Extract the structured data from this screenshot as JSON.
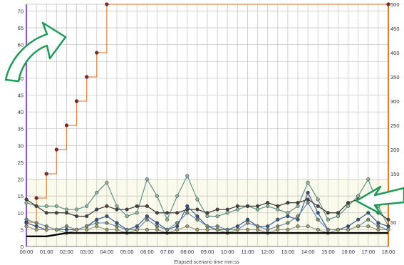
{
  "chart_data": {
    "type": "line",
    "xlabel": "Elapsed scenario time mm:ss",
    "ylabel": "",
    "x": [
      "00:00",
      "01:00",
      "02:00",
      "03:00",
      "04:00",
      "05:00",
      "06:00",
      "07:00",
      "08:00",
      "09:00",
      "10:00",
      "11:00",
      "12:00",
      "13:00",
      "14:00",
      "15:00",
      "16:00",
      "17:00",
      "18:00"
    ],
    "xlim": [
      0,
      18
    ],
    "ylim_left": [
      0,
      72
    ],
    "left_ticks": [
      0,
      5,
      10,
      15,
      20,
      25,
      30,
      35,
      40,
      45,
      50,
      55,
      60,
      65,
      70
    ],
    "ylim_right": [
      0,
      500
    ],
    "right_ticks": [
      50,
      100,
      150,
      200,
      250,
      300,
      350,
      400,
      450,
      500
    ],
    "grid": true,
    "series_left": [
      {
        "color": "#5d8f88",
        "marker": "#8fb5a0",
        "points": [
          [
            0,
            13
          ],
          [
            0.5,
            12
          ],
          [
            1,
            12
          ],
          [
            1.5,
            12
          ],
          [
            2,
            11
          ],
          [
            2.5,
            11
          ],
          [
            3,
            12
          ],
          [
            3.5,
            16
          ],
          [
            4,
            19
          ],
          [
            4.5,
            12
          ],
          [
            5,
            9
          ],
          [
            5.5,
            10
          ],
          [
            6,
            20
          ],
          [
            6.5,
            15
          ],
          [
            7,
            8
          ],
          [
            7.5,
            15
          ],
          [
            8,
            21
          ],
          [
            8.5,
            14
          ],
          [
            9,
            9
          ],
          [
            9.5,
            9
          ],
          [
            10,
            10
          ],
          [
            10.5,
            11
          ],
          [
            11,
            12
          ],
          [
            11.5,
            11
          ],
          [
            12,
            12
          ],
          [
            12.5,
            11
          ],
          [
            13,
            10
          ],
          [
            13.5,
            12
          ],
          [
            14,
            19
          ],
          [
            14.5,
            14
          ],
          [
            15,
            8
          ],
          [
            15.5,
            9
          ],
          [
            16,
            12
          ],
          [
            16.5,
            15
          ],
          [
            17,
            20
          ],
          [
            17.5,
            12
          ],
          [
            18,
            6
          ]
        ]
      },
      {
        "color": "#333333",
        "marker": "#444444",
        "points": [
          [
            0,
            14
          ],
          [
            0.5,
            12
          ],
          [
            1,
            10
          ],
          [
            1.5,
            10
          ],
          [
            2,
            10
          ],
          [
            2.5,
            9
          ],
          [
            3,
            9
          ],
          [
            3.5,
            11
          ],
          [
            4,
            12
          ],
          [
            4.5,
            11
          ],
          [
            5,
            11
          ],
          [
            5.5,
            12
          ],
          [
            6,
            12
          ],
          [
            6.5,
            10
          ],
          [
            7,
            10
          ],
          [
            7.5,
            10
          ],
          [
            8,
            11
          ],
          [
            8.5,
            11
          ],
          [
            9,
            10
          ],
          [
            9.5,
            11
          ],
          [
            10,
            11
          ],
          [
            10.5,
            12
          ],
          [
            11,
            12
          ],
          [
            11.5,
            12
          ],
          [
            12,
            13
          ],
          [
            12.5,
            12
          ],
          [
            13,
            13
          ],
          [
            13.5,
            13
          ],
          [
            14,
            14
          ],
          [
            14.5,
            12
          ],
          [
            15,
            10
          ],
          [
            15.5,
            10
          ],
          [
            16,
            13
          ],
          [
            16.5,
            14
          ],
          [
            17,
            12
          ],
          [
            17.5,
            10
          ],
          [
            18,
            8
          ]
        ]
      },
      {
        "color": "#3a5a90",
        "marker": "#34548a",
        "points": [
          [
            0,
            7
          ],
          [
            0.5,
            6
          ],
          [
            1,
            5
          ],
          [
            1.5,
            5
          ],
          [
            2,
            5
          ],
          [
            2.5,
            5
          ],
          [
            3,
            6
          ],
          [
            3.5,
            8
          ],
          [
            4,
            9
          ],
          [
            4.5,
            7
          ],
          [
            5,
            5
          ],
          [
            5.5,
            6
          ],
          [
            6,
            9
          ],
          [
            6.5,
            7
          ],
          [
            7,
            5
          ],
          [
            7.5,
            6
          ],
          [
            8,
            12
          ],
          [
            8.5,
            9
          ],
          [
            9,
            6
          ],
          [
            9.5,
            5
          ],
          [
            10,
            5
          ],
          [
            10.5,
            6
          ],
          [
            11,
            8
          ],
          [
            11.5,
            6
          ],
          [
            12,
            6
          ],
          [
            12.5,
            8
          ],
          [
            13,
            9
          ],
          [
            13.5,
            8
          ],
          [
            14,
            16
          ],
          [
            14.5,
            10
          ],
          [
            15,
            5
          ],
          [
            15.5,
            5
          ],
          [
            16,
            6
          ],
          [
            16.5,
            8
          ],
          [
            17,
            10
          ],
          [
            17.5,
            7
          ],
          [
            18,
            6
          ]
        ]
      },
      {
        "color": "#6a8ab8",
        "marker": "#7a8a70",
        "points": [
          [
            0,
            8
          ],
          [
            0.5,
            7
          ],
          [
            1,
            6
          ],
          [
            1.5,
            5
          ],
          [
            2,
            6
          ],
          [
            2.5,
            5
          ],
          [
            3,
            6
          ],
          [
            3.5,
            7
          ],
          [
            4,
            7
          ],
          [
            4.5,
            6
          ],
          [
            5,
            5
          ],
          [
            5.5,
            5
          ],
          [
            6,
            8
          ],
          [
            6.5,
            6
          ],
          [
            7,
            5
          ],
          [
            7.5,
            7
          ],
          [
            8,
            10
          ],
          [
            8.5,
            8
          ],
          [
            9,
            6
          ],
          [
            9.5,
            6
          ],
          [
            10,
            5
          ],
          [
            10.5,
            5
          ],
          [
            11,
            7
          ],
          [
            11.5,
            6
          ],
          [
            12,
            5
          ],
          [
            12.5,
            6
          ],
          [
            13,
            7
          ],
          [
            13.5,
            9
          ],
          [
            14,
            13
          ],
          [
            14.5,
            8
          ],
          [
            15,
            5
          ],
          [
            15.5,
            5
          ],
          [
            16,
            5
          ],
          [
            16.5,
            6
          ],
          [
            17,
            8
          ],
          [
            17.5,
            6
          ],
          [
            18,
            5
          ]
        ]
      },
      {
        "color": "#999999",
        "marker": "#a0a070",
        "points": [
          [
            0,
            6
          ],
          [
            0.5,
            5
          ],
          [
            1,
            5
          ],
          [
            1.5,
            5
          ],
          [
            2,
            4
          ],
          [
            2.5,
            5
          ],
          [
            3,
            5
          ],
          [
            3.5,
            6
          ],
          [
            4,
            5
          ],
          [
            4.5,
            5
          ],
          [
            5,
            4
          ],
          [
            5.5,
            5
          ],
          [
            6,
            5
          ],
          [
            6.5,
            5
          ],
          [
            7,
            4
          ],
          [
            7.5,
            5
          ],
          [
            8,
            6
          ],
          [
            8.5,
            5
          ],
          [
            9,
            5
          ],
          [
            9.5,
            5
          ],
          [
            10,
            4
          ],
          [
            10.5,
            5
          ],
          [
            11,
            5
          ],
          [
            11.5,
            5
          ],
          [
            12,
            4
          ],
          [
            12.5,
            5
          ],
          [
            13,
            5
          ],
          [
            13.5,
            6
          ],
          [
            14,
            6
          ],
          [
            14.5,
            5
          ],
          [
            15,
            4
          ],
          [
            15.5,
            5
          ],
          [
            16,
            5
          ],
          [
            16.5,
            6
          ],
          [
            17,
            6
          ],
          [
            17.5,
            5
          ],
          [
            18,
            5
          ]
        ]
      },
      {
        "color": "#000000",
        "marker": "#000000",
        "points": [
          [
            0,
            3
          ],
          [
            1,
            3
          ],
          [
            2,
            4
          ],
          [
            3,
            4
          ],
          [
            4,
            4
          ],
          [
            5,
            4
          ],
          [
            6,
            4
          ],
          [
            7,
            4
          ],
          [
            8,
            4
          ],
          [
            9,
            4
          ],
          [
            10,
            4
          ],
          [
            11,
            4
          ],
          [
            12,
            4
          ],
          [
            13,
            4
          ],
          [
            14,
            4
          ],
          [
            15,
            4
          ],
          [
            16,
            4
          ],
          [
            17,
            4
          ],
          [
            18,
            4
          ]
        ]
      }
    ],
    "series_right": [
      {
        "color": "#e08a50",
        "marker": "#7a2a2a",
        "step": true,
        "points": [
          [
            0,
            50
          ],
          [
            0.5,
            100
          ],
          [
            1,
            150
          ],
          [
            1.5,
            200
          ],
          [
            2,
            250
          ],
          [
            2.5,
            300
          ],
          [
            3,
            350
          ],
          [
            3.5,
            400
          ],
          [
            4,
            500
          ],
          [
            18,
            500
          ]
        ]
      }
    ],
    "annotations": [
      {
        "name": "arrow-top-left-icon"
      },
      {
        "name": "arrow-right-icon"
      }
    ]
  }
}
